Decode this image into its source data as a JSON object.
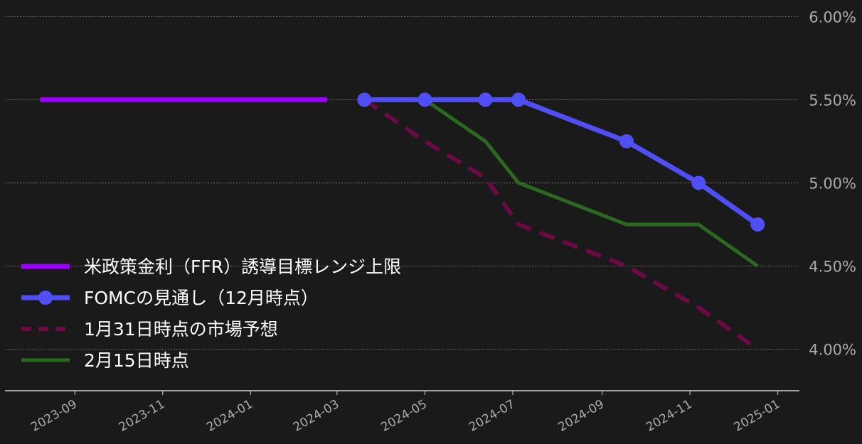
{
  "chart_data": {
    "type": "line",
    "title": "",
    "xlabel": "",
    "ylabel": "",
    "x_axis": "date",
    "xlim": [
      "2023-07-15",
      "2025-01-15"
    ],
    "ylim": [
      3.75,
      6.1
    ],
    "y_ticks": [
      "4.00%",
      "4.50%",
      "5.00%",
      "5.50%",
      "6.00%"
    ],
    "y_tick_values": [
      4.0,
      4.5,
      5.0,
      5.5,
      6.0
    ],
    "x_ticks": [
      "2023-09",
      "2023-11",
      "2024-01",
      "2024-03",
      "2024-05",
      "2024-07",
      "2024-09",
      "2024-11",
      "2025-01"
    ],
    "y_axis_side": "right",
    "grid": "horizontal dashed",
    "legend_position": "lower-left",
    "series": [
      {
        "name": "米政策金利（FFR）誘導目標レンジ上限",
        "color": "#9b00ff",
        "style": "solid",
        "markers": false,
        "points": [
          {
            "x": "2023-08-08",
            "y": 5.5
          },
          {
            "x": "2024-02-23",
            "y": 5.5
          }
        ]
      },
      {
        "name": "FOMCの見通し（12月時点）",
        "color": "#4f4ff5",
        "style": "solid",
        "markers": true,
        "points": [
          {
            "x": "2024-03-20",
            "y": 5.5
          },
          {
            "x": "2024-05-01",
            "y": 5.5
          },
          {
            "x": "2024-06-12",
            "y": 5.5
          },
          {
            "x": "2024-07-05",
            "y": 5.5
          },
          {
            "x": "2024-09-18",
            "y": 5.25
          },
          {
            "x": "2024-11-07",
            "y": 5.0
          },
          {
            "x": "2024-12-18",
            "y": 4.75
          }
        ]
      },
      {
        "name": "1月31日時点の市場予想",
        "color": "#6b0a45",
        "style": "dashed",
        "markers": false,
        "points": [
          {
            "x": "2024-03-20",
            "y": 5.5
          },
          {
            "x": "2024-05-01",
            "y": 5.25
          },
          {
            "x": "2024-06-12",
            "y": 5.03
          },
          {
            "x": "2024-07-05",
            "y": 4.75
          },
          {
            "x": "2024-09-18",
            "y": 4.5
          },
          {
            "x": "2024-11-07",
            "y": 4.25
          },
          {
            "x": "2024-12-18",
            "y": 4.0
          }
        ]
      },
      {
        "name": "2月15日時点",
        "color": "#2a6a1f",
        "style": "solid",
        "markers": false,
        "points": [
          {
            "x": "2024-03-20",
            "y": 5.5
          },
          {
            "x": "2024-05-01",
            "y": 5.5
          },
          {
            "x": "2024-06-12",
            "y": 5.25
          },
          {
            "x": "2024-07-05",
            "y": 5.0
          },
          {
            "x": "2024-09-18",
            "y": 4.75
          },
          {
            "x": "2024-11-07",
            "y": 4.75
          },
          {
            "x": "2024-12-18",
            "y": 4.5
          }
        ]
      }
    ]
  }
}
